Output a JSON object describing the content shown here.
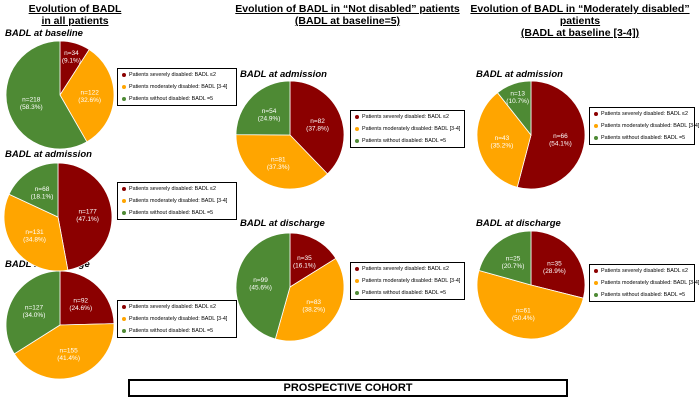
{
  "colors": {
    "severe": "#8B0000",
    "moderate": "#FFA500",
    "none": "#4E8A34"
  },
  "legend_labels": {
    "severe": "Patients severely disabled: BADL ≤2",
    "moderate": "Patients moderately disabled: BADL [3-4]",
    "none": "Patients without disabled: BADL =5"
  },
  "columns": [
    {
      "title_line1": "Evolution of BADL",
      "title_line2": "in all patients"
    },
    {
      "title_line1": "Evolution of BADL in “Not disabled” patients",
      "title_line2": "(BADL at baseline=5)"
    },
    {
      "title_line1": "Evolution of BADL in “Moderately disabled” patients",
      "title_line2": "(BADL at baseline [3-4])"
    }
  ],
  "footer": "PROSPECTIVE COHORT",
  "chart_data": [
    {
      "type": "pie",
      "column": "Evolution of BADL in all patients",
      "title": "BADL at baseline",
      "categories": [
        "Patients severely disabled: BADL ≤2",
        "Patients moderately disabled: BADL [3-4]",
        "Patients without disabled: BADL =5"
      ],
      "values": [
        34,
        122,
        218
      ],
      "percents": [
        9.1,
        32.6,
        58.3
      ],
      "labels": [
        [
          "n=34",
          "(9.1%)"
        ],
        [
          "n=122",
          "(32.6%)"
        ],
        [
          "n=218",
          "(58.3%)"
        ]
      ]
    },
    {
      "type": "pie",
      "column": "Evolution of BADL in all patients",
      "title": "BADL at admission",
      "categories": [
        "Patients severely disabled: BADL ≤2",
        "Patients moderately disabled: BADL [3-4]",
        "Patients without disabled: BADL =5"
      ],
      "values": [
        177,
        131,
        68
      ],
      "percents": [
        47.1,
        34.8,
        18.1
      ],
      "labels": [
        [
          "n=177",
          "(47.1%)"
        ],
        [
          "n=131",
          "(34.8%)"
        ],
        [
          "n=68",
          "(18.1%)"
        ]
      ]
    },
    {
      "type": "pie",
      "column": "Evolution of BADL in all patients",
      "title": "BADL at discharge",
      "categories": [
        "Patients severely disabled: BADL ≤2",
        "Patients moderately disabled: BADL [3-4]",
        "Patients without disabled: BADL =5"
      ],
      "values": [
        92,
        155,
        127
      ],
      "percents": [
        24.6,
        41.4,
        34.0
      ],
      "labels": [
        [
          "n=92",
          "(24.6%)"
        ],
        [
          "n=155",
          "(41.4%)"
        ],
        [
          "n=127",
          "(34.0%)"
        ]
      ]
    },
    {
      "type": "pie",
      "column": "Evolution of BADL in “Not disabled” patients",
      "title": "BADL at admission",
      "categories": [
        "Patients severely disabled: BADL ≤2",
        "Patients moderately disabled: BADL [3-4]",
        "Patients without disabled: BADL =5"
      ],
      "values": [
        82,
        81,
        54
      ],
      "percents": [
        37.8,
        37.3,
        24.9
      ],
      "labels": [
        [
          "n=82",
          "(37.8%)"
        ],
        [
          "n=81",
          "(37.3%)"
        ],
        [
          "n=54",
          "(24.9%)"
        ]
      ]
    },
    {
      "type": "pie",
      "column": "Evolution of BADL in “Not disabled” patients",
      "title": "BADL at discharge",
      "categories": [
        "Patients severely disabled: BADL ≤2",
        "Patients moderately disabled: BADL [3-4]",
        "Patients without disabled: BADL =5"
      ],
      "values": [
        35,
        83,
        99
      ],
      "percents": [
        16.1,
        38.2,
        45.6
      ],
      "labels": [
        [
          "n=35",
          "(16.1%)"
        ],
        [
          "n=83",
          "(38.2%)"
        ],
        [
          "n=99",
          "(45.6%)"
        ]
      ]
    },
    {
      "type": "pie",
      "column": "Evolution of BADL in “Moderately disabled” patients",
      "title": "BADL at admission",
      "categories": [
        "Patients severely disabled: BADL ≤2",
        "Patients moderately disabled: BADL [3-4]",
        "Patients without disabled: BADL =5"
      ],
      "values": [
        66,
        43,
        13
      ],
      "percents": [
        54.1,
        35.2,
        10.7
      ],
      "labels": [
        [
          "n=66",
          "(54.1%)"
        ],
        [
          "n=43",
          "(35.2%)"
        ],
        [
          "n=13",
          "(10.7%)"
        ]
      ]
    },
    {
      "type": "pie",
      "column": "Evolution of BADL in “Moderately disabled” patients",
      "title": "BADL at discharge",
      "categories": [
        "Patients severely disabled: BADL ≤2",
        "Patients moderately disabled: BADL [3-4]",
        "Patients without disabled: BADL =5"
      ],
      "values": [
        35,
        61,
        25
      ],
      "percents": [
        28.9,
        50.4,
        20.7
      ],
      "labels": [
        [
          "n=35",
          "(28.9%)"
        ],
        [
          "n=61",
          "(50.4%)"
        ],
        [
          "n=25",
          "(20.7%)"
        ]
      ]
    }
  ]
}
